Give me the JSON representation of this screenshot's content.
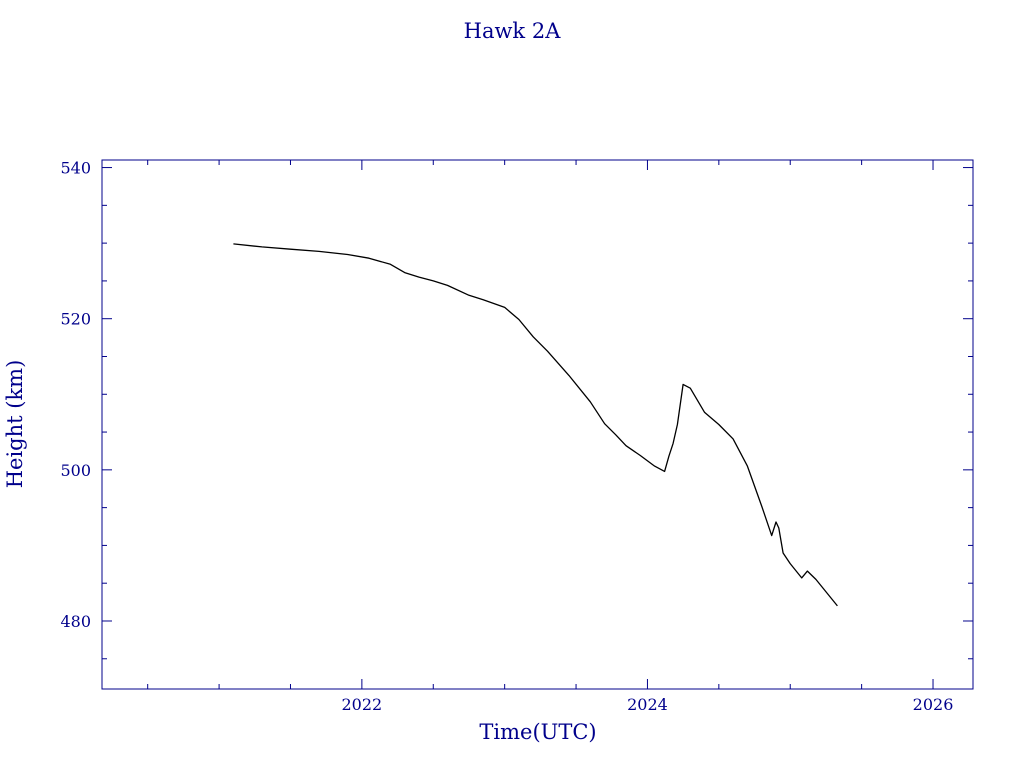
{
  "chart_data": {
    "type": "line",
    "title": "Hawk 2A",
    "xlabel": "Time(UTC)",
    "ylabel": "Height (km)",
    "xlim": [
      2020.18,
      2026.28
    ],
    "ylim": [
      471,
      541
    ],
    "x_ticks": [
      2022,
      2024,
      2026
    ],
    "x_tick_labels": [
      "2022",
      "2024",
      "2026"
    ],
    "y_ticks": [
      480,
      500,
      520,
      540
    ],
    "y_tick_labels": [
      "480",
      "500",
      "520",
      "540"
    ],
    "grid": false,
    "axis_color": "#00008b",
    "line_color": "#000000",
    "series": [
      {
        "x": [
          2021.1,
          2021.3,
          2021.5,
          2021.7,
          2021.9,
          2022.05,
          2022.2,
          2022.3,
          2022.4,
          2022.5,
          2022.6,
          2022.75,
          2022.85,
          2023.0,
          2023.1,
          2023.2,
          2023.3,
          2023.45,
          2023.6,
          2023.7,
          2023.78,
          2023.85,
          2023.95,
          2024.05,
          2024.12,
          2024.15,
          2024.18,
          2024.21,
          2024.25,
          2024.3,
          2024.4,
          2024.5,
          2024.6,
          2024.7,
          2024.8,
          2024.87,
          2024.9,
          2024.92,
          2024.95,
          2025.0,
          2025.08,
          2025.12,
          2025.18,
          2025.33
        ],
        "y": [
          529.9,
          529.5,
          529.2,
          528.9,
          528.5,
          528.0,
          527.2,
          526.1,
          525.5,
          525.0,
          524.4,
          523.1,
          522.5,
          521.5,
          519.9,
          517.6,
          515.7,
          512.5,
          509.0,
          506.1,
          504.6,
          503.2,
          501.9,
          500.5,
          499.8,
          501.8,
          503.5,
          506.0,
          511.3,
          510.8,
          507.6,
          506.0,
          504.1,
          500.5,
          495.2,
          491.3,
          493.1,
          492.3,
          489.0,
          487.6,
          485.7,
          486.6,
          485.5,
          482.0
        ]
      }
    ]
  }
}
